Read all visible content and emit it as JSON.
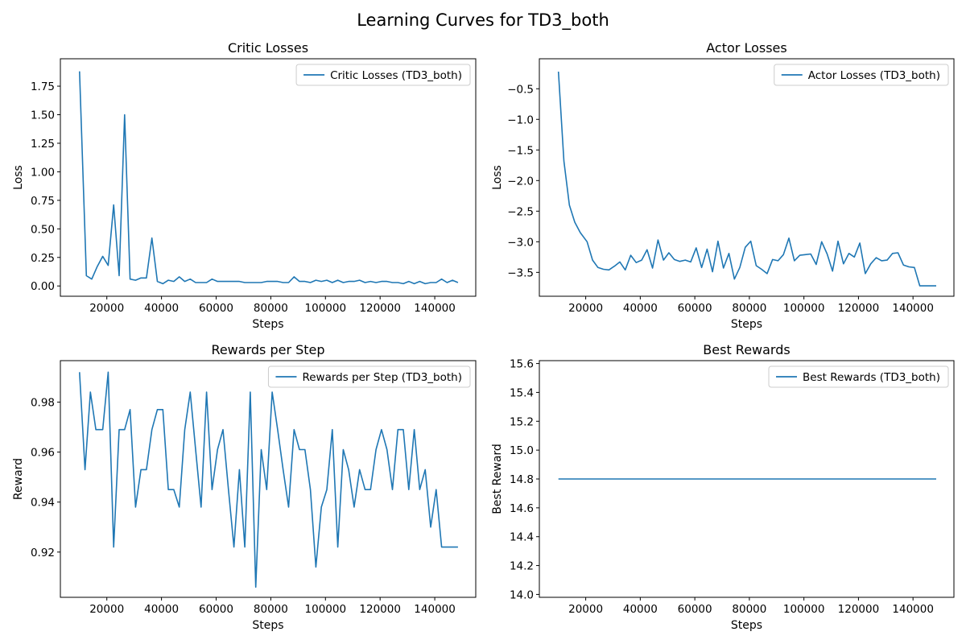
{
  "figure_title": "Learning Curves for TD3_both",
  "colors": {
    "line": "#1f77b4",
    "axes": "#000000",
    "legend_border": "#cccccc"
  },
  "chart_data": [
    {
      "type": "line",
      "title": "Critic Losses",
      "xlabel": "Steps",
      "ylabel": "Loss",
      "xlim": [
        3000,
        155000
      ],
      "ylim": [
        -0.09,
        1.99
      ],
      "xticks": [
        20000,
        40000,
        60000,
        80000,
        100000,
        120000,
        140000
      ],
      "yticks": [
        "0.00",
        "0.25",
        "0.50",
        "0.75",
        "1.00",
        "1.25",
        "1.50",
        "1.75"
      ],
      "grid": false,
      "legend_position": "top-right",
      "series": [
        {
          "name": "Critic Losses (TD3_both)",
          "x": [
            10000,
            12500,
            14500,
            16500,
            18500,
            20500,
            22500,
            24500,
            26500,
            28500,
            30500,
            32500,
            34500,
            36500,
            38500,
            40500,
            42500,
            44500,
            46500,
            48500,
            50500,
            52500,
            54500,
            56500,
            58500,
            60500,
            62500,
            64500,
            66500,
            68500,
            70500,
            72500,
            74500,
            76500,
            78500,
            80500,
            82500,
            84500,
            86500,
            88500,
            90500,
            92500,
            94500,
            96500,
            98500,
            100500,
            102500,
            104500,
            106500,
            108500,
            110500,
            112500,
            114500,
            116500,
            118500,
            120500,
            122500,
            124500,
            126500,
            128500,
            130500,
            132500,
            134500,
            136500,
            138500,
            140500,
            142500,
            144500,
            146500,
            148500
          ],
          "y": [
            1.88,
            0.09,
            0.06,
            0.17,
            0.26,
            0.18,
            0.71,
            0.09,
            1.5,
            0.06,
            0.05,
            0.07,
            0.07,
            0.42,
            0.04,
            0.02,
            0.05,
            0.04,
            0.08,
            0.04,
            0.06,
            0.03,
            0.03,
            0.03,
            0.06,
            0.04,
            0.04,
            0.04,
            0.04,
            0.04,
            0.03,
            0.03,
            0.03,
            0.03,
            0.04,
            0.04,
            0.04,
            0.03,
            0.03,
            0.08,
            0.04,
            0.04,
            0.03,
            0.05,
            0.04,
            0.05,
            0.03,
            0.05,
            0.03,
            0.04,
            0.04,
            0.05,
            0.03,
            0.04,
            0.03,
            0.04,
            0.04,
            0.03,
            0.03,
            0.02,
            0.04,
            0.02,
            0.04,
            0.02,
            0.03,
            0.03,
            0.06,
            0.03,
            0.05,
            0.03
          ]
        }
      ]
    },
    {
      "type": "line",
      "title": "Actor Losses",
      "xlabel": "Steps",
      "ylabel": "Loss",
      "xlim": [
        3000,
        155000
      ],
      "ylim": [
        -3.89,
        -0.01
      ],
      "xticks": [
        20000,
        40000,
        60000,
        80000,
        100000,
        120000,
        140000
      ],
      "yticks": [
        "−3.5",
        "−3.0",
        "−2.5",
        "−2.0",
        "−1.5",
        "−1.0",
        "−0.5"
      ],
      "ytick_values": [
        -3.5,
        -3.0,
        -2.5,
        -2.0,
        -1.5,
        -1.0,
        -0.5
      ],
      "grid": false,
      "legend_position": "top-right",
      "series": [
        {
          "name": "Actor Losses (TD3_both)",
          "x": [
            10000,
            12000,
            14000,
            16000,
            18000,
            20500,
            22500,
            24500,
            26500,
            28500,
            30500,
            32500,
            34500,
            36500,
            38500,
            40500,
            42500,
            44500,
            46500,
            48500,
            50500,
            52500,
            54500,
            56500,
            58500,
            60500,
            62500,
            64500,
            66500,
            68500,
            70500,
            72500,
            74500,
            76500,
            78500,
            80500,
            82500,
            84500,
            86500,
            88500,
            90500,
            92500,
            94500,
            96500,
            98500,
            100500,
            102500,
            104500,
            106500,
            108500,
            110500,
            112500,
            114500,
            116500,
            118500,
            120500,
            122500,
            124500,
            126500,
            128500,
            130500,
            132500,
            134500,
            136500,
            138500,
            140500,
            142500,
            144500,
            146500,
            148500
          ],
          "y": [
            -0.22,
            -1.68,
            -2.4,
            -2.68,
            -2.85,
            -3.0,
            -3.3,
            -3.42,
            -3.45,
            -3.46,
            -3.4,
            -3.33,
            -3.46,
            -3.22,
            -3.34,
            -3.3,
            -3.13,
            -3.43,
            -2.97,
            -3.3,
            -3.18,
            -3.29,
            -3.32,
            -3.3,
            -3.33,
            -3.1,
            -3.42,
            -3.12,
            -3.49,
            -2.99,
            -3.43,
            -3.19,
            -3.61,
            -3.42,
            -3.09,
            -2.99,
            -3.39,
            -3.45,
            -3.52,
            -3.29,
            -3.31,
            -3.21,
            -2.94,
            -3.31,
            -3.22,
            -3.21,
            -3.2,
            -3.37,
            -3.0,
            -3.2,
            -3.48,
            -2.99,
            -3.36,
            -3.19,
            -3.25,
            -3.02,
            -3.52,
            -3.36,
            -3.26,
            -3.31,
            -3.3,
            -3.19,
            -3.18,
            -3.38,
            -3.41,
            -3.42,
            -3.72,
            -3.72,
            -3.72,
            -3.72
          ]
        }
      ]
    },
    {
      "type": "line",
      "title": "Rewards per Step",
      "xlabel": "Steps",
      "ylabel": "Reward",
      "xlim": [
        3000,
        155000
      ],
      "ylim": [
        0.9019,
        0.9966
      ],
      "xticks": [
        20000,
        40000,
        60000,
        80000,
        100000,
        120000,
        140000
      ],
      "yticks": [
        "0.92",
        "0.94",
        "0.96",
        "0.98"
      ],
      "grid": false,
      "legend_position": "top-right",
      "series": [
        {
          "name": "Rewards per Step (TD3_both)",
          "x": [
            10000,
            12000,
            14000,
            16000,
            18500,
            20500,
            22500,
            24500,
            26500,
            28500,
            30500,
            32500,
            34500,
            36500,
            38500,
            40500,
            42500,
            44500,
            46500,
            48500,
            50500,
            52500,
            54500,
            56500,
            58500,
            60500,
            62500,
            64500,
            66500,
            68500,
            70500,
            72500,
            74500,
            76500,
            78500,
            80500,
            82500,
            84500,
            86500,
            88500,
            90500,
            92500,
            94500,
            96500,
            98500,
            100500,
            102500,
            104500,
            106500,
            108500,
            110500,
            112500,
            114500,
            116500,
            118500,
            120500,
            122500,
            124500,
            126500,
            128500,
            130500,
            132500,
            134500,
            136500,
            138500,
            140500,
            142500,
            144500,
            146500,
            148500
          ],
          "y": [
            0.992,
            0.953,
            0.984,
            0.969,
            0.969,
            0.992,
            0.922,
            0.969,
            0.969,
            0.977,
            0.938,
            0.953,
            0.953,
            0.969,
            0.977,
            0.977,
            0.945,
            0.945,
            0.938,
            0.969,
            0.984,
            0.961,
            0.938,
            0.984,
            0.945,
            0.961,
            0.969,
            0.945,
            0.922,
            0.953,
            0.922,
            0.984,
            0.906,
            0.961,
            0.945,
            0.984,
            0.969,
            0.953,
            0.938,
            0.969,
            0.961,
            0.961,
            0.945,
            0.914,
            0.938,
            0.945,
            0.969,
            0.922,
            0.961,
            0.953,
            0.938,
            0.953,
            0.945,
            0.945,
            0.961,
            0.969,
            0.961,
            0.945,
            0.969,
            0.969,
            0.945,
            0.969,
            0.945,
            0.953,
            0.93,
            0.945,
            0.922,
            0.922,
            0.922,
            0.922
          ]
        }
      ]
    },
    {
      "type": "line",
      "title": "Best Rewards",
      "xlabel": "Steps",
      "ylabel": "Best Reward",
      "xlim": [
        3000,
        155000
      ],
      "ylim": [
        13.98,
        15.62
      ],
      "xticks": [
        20000,
        40000,
        60000,
        80000,
        100000,
        120000,
        140000
      ],
      "yticks": [
        "14.0",
        "14.2",
        "14.4",
        "14.6",
        "14.8",
        "15.0",
        "15.2",
        "15.4",
        "15.6"
      ],
      "grid": false,
      "legend_position": "top-right",
      "series": [
        {
          "name": "Best Rewards (TD3_both)",
          "x": [
            10000,
            148500
          ],
          "y": [
            14.8,
            14.8
          ]
        }
      ]
    }
  ]
}
